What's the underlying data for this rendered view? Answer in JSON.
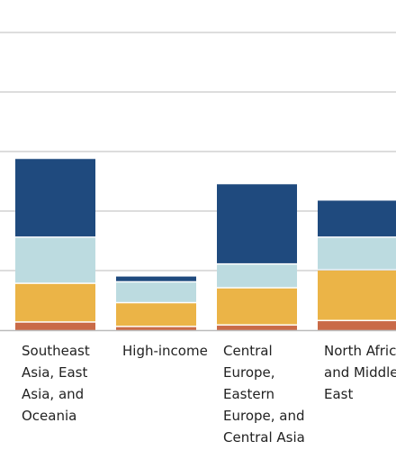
{
  "chart_data": {
    "type": "bar",
    "stacked": true,
    "categories": [
      "Southeast Asia, East Asia, and Oceania",
      "High-income",
      "Central Europe, Eastern Europe, and Central Asia",
      "North Africa and Middle East"
    ],
    "category_label_lines": [
      [
        "Southeast",
        "Asia, East",
        "Asia, and",
        "Oceania"
      ],
      [
        "High-income"
      ],
      [
        "Central",
        "Europe,",
        "Eastern",
        "Europe, and",
        "Central Asia"
      ],
      [
        "North Africa",
        "and Middle",
        "East"
      ]
    ],
    "series": [
      {
        "color": "#c96a47",
        "values": [
          0.25,
          0.1,
          0.15,
          0.3
        ]
      },
      {
        "color": "#ebb447",
        "values": [
          1.3,
          0.8,
          1.25,
          1.7
        ]
      },
      {
        "color": "#bcdbe0",
        "values": [
          1.55,
          0.7,
          0.8,
          1.1
        ]
      },
      {
        "color": "#1f4a7e",
        "values": [
          2.65,
          0.2,
          2.7,
          1.25
        ]
      }
    ],
    "ylim": [
      0,
      10
    ],
    "grid": true,
    "legend": "none"
  }
}
